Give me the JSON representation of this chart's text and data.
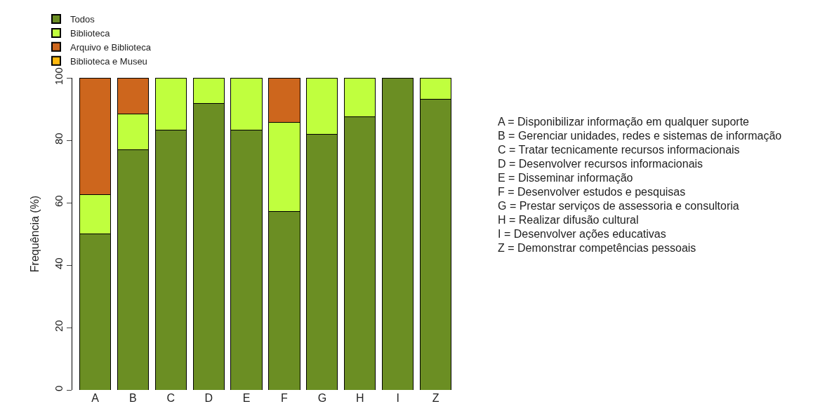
{
  "chart_data": {
    "type": "bar",
    "stacked": true,
    "ylabel": "Frequência (%)",
    "categories": [
      "A",
      "B",
      "C",
      "D",
      "E",
      "F",
      "G",
      "H",
      "I",
      "Z"
    ],
    "series": [
      {
        "name": "Todos",
        "color": "#6b8e23",
        "values": [
          50,
          76.9,
          83.3,
          91.7,
          83.3,
          57.1,
          81.8,
          87.5,
          100,
          93.1
        ]
      },
      {
        "name": "Biblioteca",
        "color": "#c0ff3e",
        "values": [
          12.5,
          11.5,
          16.7,
          8.3,
          16.7,
          28.6,
          18.2,
          12.5,
          0,
          6.9
        ]
      },
      {
        "name": "Arquivo e Biblioteca",
        "color": "#cd661d",
        "values": [
          37.5,
          11.6,
          0,
          0,
          0,
          14.3,
          0,
          0,
          0,
          0
        ]
      },
      {
        "name": "Biblioteca e Museu",
        "color": "#ffb90f",
        "values": [
          0,
          0,
          0,
          0,
          0,
          0,
          0,
          0,
          0,
          0
        ]
      }
    ],
    "ylim": [
      0,
      100
    ],
    "yticks": [
      0,
      20,
      40,
      60,
      80,
      100
    ],
    "grid": false,
    "legend": "top left",
    "annotations": [
      "A = Disponibilizar informação em qualquer suporte",
      "B = Gerenciar unidades, redes e sistemas de informação",
      "C = Tratar tecnicamente recursos informacionais",
      "D = Desenvolver recursos informacionais",
      "E = Disseminar informação",
      "F = Desenvolver estudos e pesquisas",
      "G = Prestar serviços de assessoria e consultoria",
      "H = Realizar difusão cultural",
      "I = Desenvolver ações educativas",
      "Z = Demonstrar competências pessoais"
    ]
  }
}
